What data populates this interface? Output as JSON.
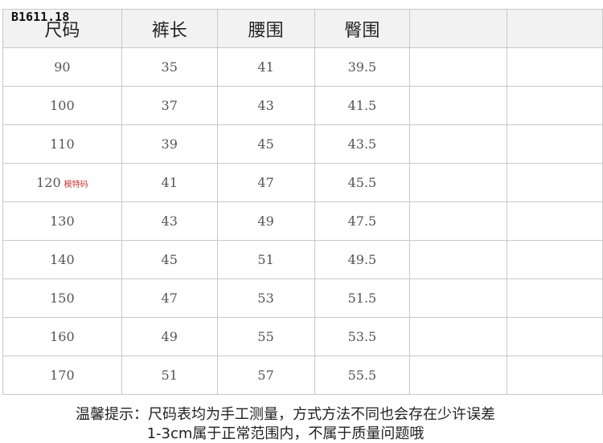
{
  "product_code": "B1611.18",
  "headers": [
    "尺码",
    "裤长",
    "腰围",
    "臀围",
    "",
    ""
  ],
  "rows": [
    {
      "size": "90",
      "note": "",
      "length": "35",
      "waist": "41",
      "hip": "39.5"
    },
    {
      "size": "100",
      "note": "",
      "length": "37",
      "waist": "43",
      "hip": "41.5"
    },
    {
      "size": "110",
      "note": "",
      "length": "39",
      "waist": "45",
      "hip": "43.5"
    },
    {
      "size": "120",
      "note": "模特码",
      "length": "41",
      "waist": "47",
      "hip": "45.5"
    },
    {
      "size": "130",
      "note": "",
      "length": "43",
      "waist": "49",
      "hip": "47.5"
    },
    {
      "size": "140",
      "note": "",
      "length": "45",
      "waist": "51",
      "hip": "49.5"
    },
    {
      "size": "150",
      "note": "",
      "length": "47",
      "waist": "53",
      "hip": "51.5"
    },
    {
      "size": "160",
      "note": "",
      "length": "49",
      "waist": "55",
      "hip": "53.5"
    },
    {
      "size": "170",
      "note": "",
      "length": "51",
      "waist": "57",
      "hip": "55.5"
    }
  ],
  "tip_line1": "温馨提示：尺码表均为手工测量，方式方法不同也会存在少许误差",
  "tip_line2": "1-3cm属于正常范围内，不属于质量问题哦",
  "colors": {
    "header_bg": "#f2f2f2",
    "note": "#d03030",
    "border": "#c8c8c8"
  }
}
